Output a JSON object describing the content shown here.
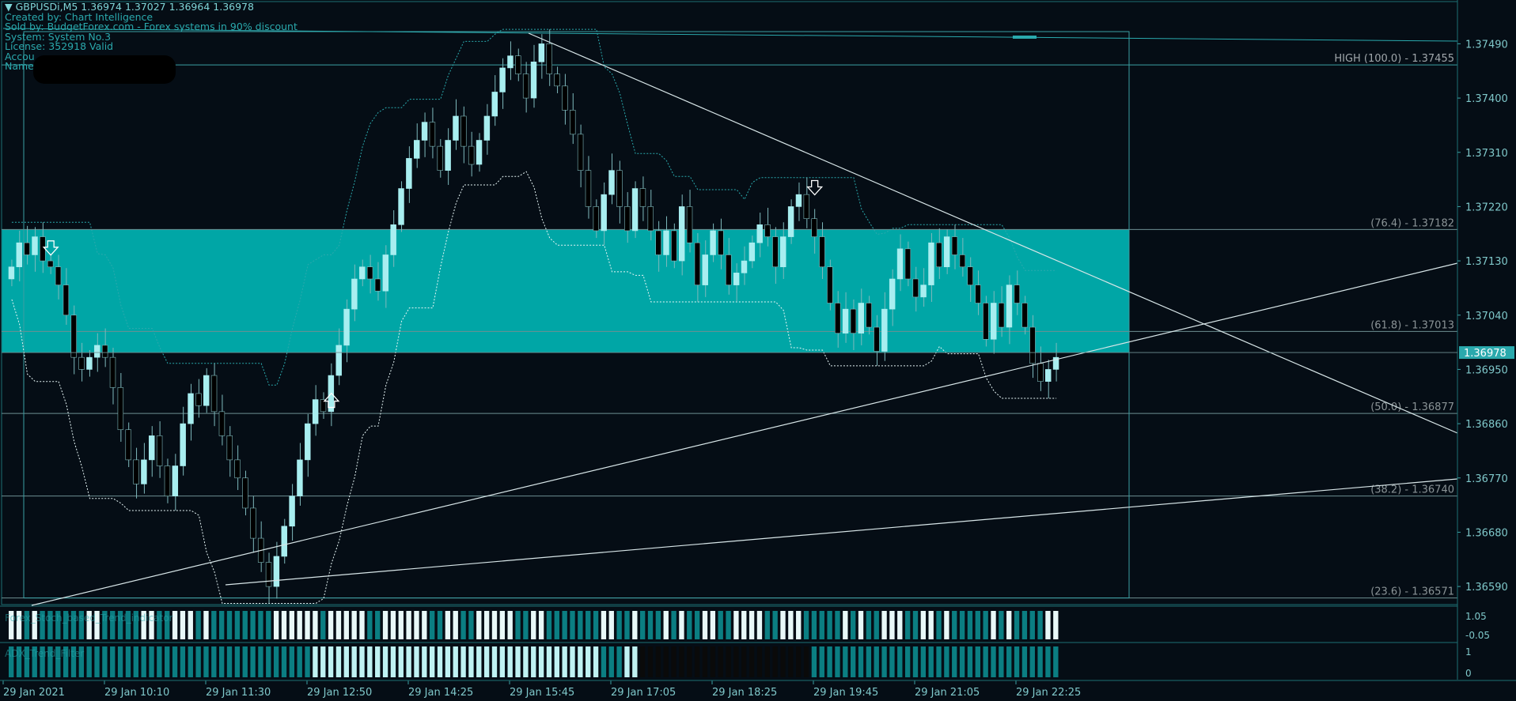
{
  "header": {
    "symbol_line": "GBPUSDi,M5  1.36974 1.37027 1.36964 1.36978",
    "created_by": "Created by: Chart Intelligence",
    "sold_by": "Sold by: BudgetForex.com - Forex systems in 90% discount",
    "system": "System: System No.3",
    "license": "License: 352918 Valid",
    "account": "Accou",
    "name": "Name"
  },
  "colors": {
    "background": "#050d15",
    "teal": "#00a6a6",
    "text": "#2aa9ad",
    "axis_text": "#7fc8ca",
    "bull": "#a8eef0",
    "bear": "#000000",
    "price_tag_bg": "#2aa9ad"
  },
  "chart_data": {
    "type": "candlestick",
    "y_range": [
      1.3656,
      1.3756
    ],
    "y_ticks": [
      "1.37490",
      "1.37400",
      "1.37310",
      "1.37220",
      "1.37130",
      "1.37040",
      "1.36950",
      "1.36860",
      "1.36770",
      "1.36680",
      "1.36590"
    ],
    "x_ticks": [
      "29 Jan 2021",
      "29 Jan 10:10",
      "29 Jan 11:30",
      "29 Jan 12:50",
      "29 Jan 14:25",
      "29 Jan 15:45",
      "29 Jan 17:05",
      "29 Jan 18:25",
      "29 Jan 19:45",
      "29 Jan 21:05",
      "29 Jan 22:25"
    ],
    "current_price": "1.36978",
    "fibonacci": [
      {
        "label": "HIGH (100.0) -  1.37455",
        "price": 1.37455
      },
      {
        "label": "(76.4) -  1.37182",
        "price": 1.37182
      },
      {
        "label": "(61.8) -  1.37013",
        "price": 1.37013
      },
      {
        "label": "(50.0) -  1.36877",
        "price": 1.36877
      },
      {
        "label": "(38.2) -  1.36740",
        "price": 1.3674
      },
      {
        "label": "(23.6) -  1.36571",
        "price": 1.36571
      }
    ],
    "zone": {
      "top": 1.37182,
      "bottom": 1.36978
    },
    "arrows": [
      {
        "dir": "down",
        "bar": 5,
        "price": 1.3715
      },
      {
        "dir": "up",
        "bar": 41,
        "price": 1.369
      },
      {
        "dir": "down",
        "bar": 103,
        "price": 1.3725
      }
    ],
    "closes": [
      1.3712,
      1.3716,
      1.3714,
      1.3717,
      1.3713,
      1.3712,
      1.3709,
      1.3704,
      1.3697,
      1.3695,
      1.3697,
      1.3699,
      1.3697,
      1.3692,
      1.3685,
      1.368,
      1.3676,
      1.368,
      1.3684,
      1.3679,
      1.3674,
      1.3679,
      1.3686,
      1.3691,
      1.3689,
      1.3694,
      1.3688,
      1.3684,
      1.368,
      1.3677,
      1.3672,
      1.3667,
      1.3663,
      1.3659,
      1.3664,
      1.3669,
      1.3674,
      1.368,
      1.3686,
      1.369,
      1.3688,
      1.3694,
      1.3699,
      1.3705,
      1.371,
      1.3712,
      1.371,
      1.3708,
      1.3714,
      1.3719,
      1.3725,
      1.373,
      1.3733,
      1.3736,
      1.3732,
      1.3728,
      1.3733,
      1.3737,
      1.3732,
      1.3729,
      1.3733,
      1.3737,
      1.3741,
      1.3745,
      1.3747,
      1.3744,
      1.374,
      1.3746,
      1.3749,
      1.3744,
      1.3742,
      1.3738,
      1.3734,
      1.3728,
      1.3722,
      1.3718,
      1.3724,
      1.3728,
      1.3722,
      1.3718,
      1.3725,
      1.3722,
      1.3718,
      1.3714,
      1.3718,
      1.3713,
      1.3722,
      1.3716,
      1.3709,
      1.3714,
      1.3718,
      1.3714,
      1.3709,
      1.3711,
      1.3713,
      1.3716,
      1.3719,
      1.3717,
      1.3712,
      1.3717,
      1.3722,
      1.3724,
      1.372,
      1.3717,
      1.3712,
      1.3706,
      1.3701,
      1.3705,
      1.3701,
      1.3706,
      1.3702,
      1.3698,
      1.3705,
      1.371,
      1.3715,
      1.371,
      1.3707,
      1.3709,
      1.3716,
      1.3712,
      1.3717,
      1.3714,
      1.3712,
      1.3709,
      1.3706,
      1.37,
      1.3706,
      1.3702,
      1.3709,
      1.3706,
      1.3702,
      1.3696,
      1.3693,
      1.3695,
      1.3697
    ]
  },
  "indicators": [
    {
      "label": "Forex_Stoch_based_Trend_indicator",
      "ticks": [
        "1.05",
        "-0.05"
      ]
    },
    {
      "label": "ADX_Trend_Filter",
      "ticks": [
        "1",
        "0"
      ]
    }
  ]
}
